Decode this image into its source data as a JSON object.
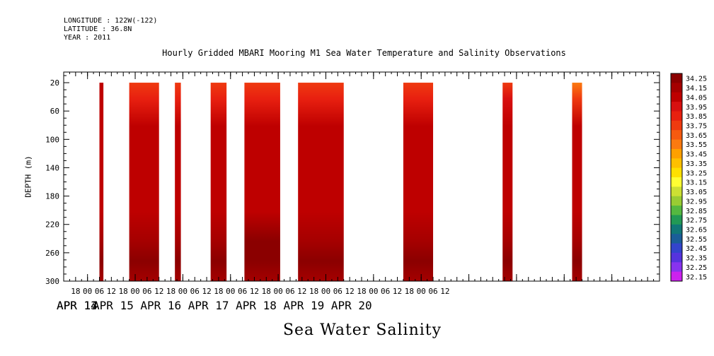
{
  "header": {
    "longitude": "LONGITUDE : 122W(-122)",
    "latitude": "LATITUDE : 36.8N",
    "year": "YEAR : 2011"
  },
  "chart_data": {
    "type": "heatmap",
    "title": "Hourly Gridded MBARI Mooring M1 Sea Water Temperature and Salinity Observations",
    "ylabel": "DEPTH (m)",
    "bottom_label": "Sea Water Salinity",
    "x_axis": {
      "hour_ticks": [
        "18",
        "00",
        "06",
        "12",
        "18",
        "00",
        "06",
        "12",
        "18",
        "00",
        "06",
        "12",
        "18",
        "00",
        "06",
        "12",
        "18",
        "00",
        "06",
        "12",
        "18",
        "00",
        "06",
        "12",
        "18",
        "00",
        "06",
        "12",
        "18",
        "00",
        "06",
        "12"
      ],
      "date_labels": [
        "APR 13",
        "APR 14",
        "APR 15",
        "APR 16",
        "APR 17",
        "APR 18",
        "APR 19",
        "APR 20"
      ],
      "range_hours_from_apr13_00": [
        12,
        312
      ]
    },
    "y_axis": {
      "ticks": [
        20,
        60,
        100,
        140,
        180,
        220,
        260,
        300
      ],
      "range": [
        300,
        5
      ],
      "inverted": true
    },
    "colorbar": {
      "levels": [
        "34.25",
        "34.15",
        "34.05",
        "33.95",
        "33.85",
        "33.75",
        "33.65",
        "33.55",
        "33.45",
        "33.35",
        "33.25",
        "33.15",
        "33.05",
        "32.95",
        "32.85",
        "32.75",
        "32.65",
        "32.55",
        "32.45",
        "32.35",
        "32.25",
        "32.15"
      ],
      "colors": [
        "#8b0000",
        "#a50000",
        "#be0000",
        "#d81010",
        "#e82010",
        "#ef3a10",
        "#f55a10",
        "#fb7a10",
        "#ffa000",
        "#ffc000",
        "#ffe000",
        "#ffff33",
        "#cce033",
        "#99cc33",
        "#55b840",
        "#229955",
        "#117777",
        "#1a5d99",
        "#3344cc",
        "#5533dd",
        "#8833ee",
        "#cc22ee"
      ]
    },
    "segments": [
      {
        "start": 30,
        "end": 32,
        "surface": 34.0,
        "mid": 34.05,
        "deep": 34.22
      },
      {
        "start": 45,
        "end": 60,
        "surface": 33.7,
        "mid": 34.05,
        "deep": 34.2
      },
      {
        "start": 68,
        "end": 71,
        "surface": 33.75,
        "mid": 34.05,
        "deep": 34.2
      },
      {
        "start": 86,
        "end": 94,
        "surface": 33.75,
        "mid": 34.05,
        "deep": 34.2
      },
      {
        "start": 103,
        "end": 121,
        "surface": 33.75,
        "mid": 34.05,
        "deep": 34.23
      },
      {
        "start": 130,
        "end": 153,
        "surface": 33.7,
        "mid": 34.05,
        "deep": 34.2
      },
      {
        "start": 183,
        "end": 198,
        "surface": 33.75,
        "mid": 34.05,
        "deep": 34.2
      },
      {
        "start": 233,
        "end": 238,
        "surface": 33.8,
        "mid": 34.05,
        "deep": 34.22
      },
      {
        "start": 268,
        "end": 273,
        "surface": 33.55,
        "mid": 34.05,
        "deep": 34.2
      }
    ]
  }
}
